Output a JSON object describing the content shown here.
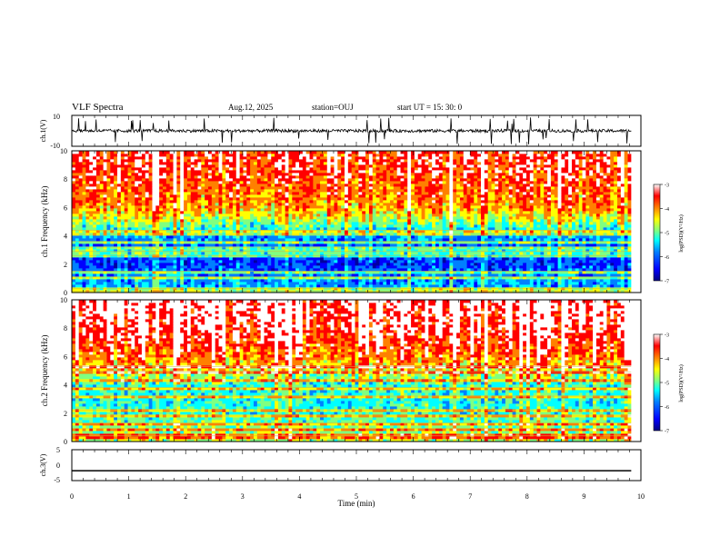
{
  "header": {
    "title": "VLF Spectra",
    "date": "Aug.12, 2025",
    "station": "station=OUJ",
    "start": "start  UT =   15: 30: 0"
  },
  "colors": {
    "colormap": [
      "#0000a0",
      "#0000ff",
      "#0080ff",
      "#00ffff",
      "#80ff80",
      "#ffff00",
      "#ff8000",
      "#ff0000",
      "#ffffff"
    ],
    "trace": "#000000"
  },
  "chart_data": [
    {
      "type": "line",
      "id": "ch1-waveform",
      "ylabel": "ch.1(V)",
      "ylim": [
        -10,
        10
      ],
      "yticks": [
        "10",
        "-10"
      ],
      "xlim": [
        0,
        10
      ],
      "series": [
        {
          "values_summary": "noise waveform centred near 0 V with spikes",
          "baseline": 0,
          "noise_amplitude": 2,
          "spike_amplitude": 9
        }
      ]
    },
    {
      "type": "heatmap",
      "id": "ch1-spectrogram",
      "ylabel": "ch.1 Frequency  (kHz)",
      "ylim": [
        0,
        10
      ],
      "yticks": [
        "0",
        "2",
        "4",
        "6",
        "8",
        "10"
      ],
      "xlim": [
        0,
        9.83
      ],
      "colorbar": {
        "label": "log(PSD)(V²/Hz)",
        "range": [
          -7,
          -3
        ],
        "ticks": [
          "-3",
          "-4",
          "-5",
          "-6",
          "-7"
        ]
      },
      "bands_khz": [
        0.1,
        0.3,
        1.1,
        1.5,
        2.6,
        2.9,
        3.2,
        3.6,
        4.1,
        4.4
      ],
      "log_psd_profile": [
        {
          "f_khz": 0,
          "level": -5.7
        },
        {
          "f_khz": 1,
          "level": -5.8
        },
        {
          "f_khz": 2,
          "level": -6.2
        },
        {
          "f_khz": 3,
          "level": -6.1
        },
        {
          "f_khz": 4,
          "level": -5.8
        },
        {
          "f_khz": 5,
          "level": -4.9
        },
        {
          "f_khz": 6,
          "level": -4.2
        },
        {
          "f_khz": 7,
          "level": -4.0
        },
        {
          "f_khz": 8,
          "level": -3.8
        },
        {
          "f_khz": 9,
          "level": -3.7
        },
        {
          "f_khz": 10,
          "level": -3.6
        }
      ]
    },
    {
      "type": "heatmap",
      "id": "ch2-spectrogram",
      "ylabel": "ch.2 Frequency  (kHz)",
      "ylim": [
        0,
        10
      ],
      "yticks": [
        "0",
        "2",
        "4",
        "6",
        "8",
        "10"
      ],
      "xlim": [
        0,
        9.83
      ],
      "colorbar": {
        "label": "log(PSD)(V²/Hz)",
        "range": [
          -7,
          -3
        ],
        "ticks": [
          "-3",
          "-4",
          "-5",
          "-6",
          "-7"
        ]
      },
      "bands_khz": [
        0.4,
        0.9,
        1.3,
        1.8,
        2.2,
        3.2,
        3.8,
        4.3,
        4.9,
        5.3
      ],
      "log_psd_profile": [
        {
          "f_khz": 0,
          "level": -4.8
        },
        {
          "f_khz": 1,
          "level": -5.0
        },
        {
          "f_khz": 2,
          "level": -5.3
        },
        {
          "f_khz": 3,
          "level": -5.4
        },
        {
          "f_khz": 4,
          "level": -5.3
        },
        {
          "f_khz": 5,
          "level": -4.6
        },
        {
          "f_khz": 6,
          "level": -4.0
        },
        {
          "f_khz": 7,
          "level": -3.7
        },
        {
          "f_khz": 8,
          "level": -3.5
        },
        {
          "f_khz": 9,
          "level": -3.4
        },
        {
          "f_khz": 10,
          "level": -3.3
        }
      ]
    },
    {
      "type": "line",
      "id": "ch3-waveform",
      "ylabel": "ch.3(V)",
      "ylim": [
        -5,
        5
      ],
      "yticks": [
        "5",
        "0",
        "-5"
      ],
      "xlabel": "Time  (min)",
      "xlim": [
        0,
        10
      ],
      "xticks": [
        "0",
        "1",
        "2",
        "3",
        "4",
        "5",
        "6",
        "7",
        "8",
        "9",
        "10"
      ],
      "series": [
        {
          "values_summary": "flat line",
          "baseline": -1.8
        }
      ]
    }
  ]
}
